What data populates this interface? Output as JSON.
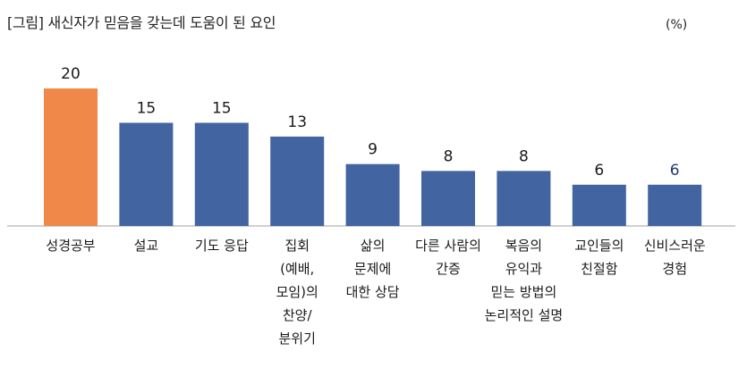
{
  "title": "[그림] 새신자가 믿음을 갖는데 도움이 된 요인",
  "unit": "(%)",
  "colors": {
    "highlight": "#F0884A",
    "bar": "#4264A0",
    "axis": "#BFBFBF",
    "label": "#1a1a1a",
    "value_default": "#1a1a1a",
    "value_last": "#1F3A6E"
  },
  "chart_data": {
    "type": "bar",
    "title": "[그림] 새신자가 믿음을 갖는데 도움이 된 요인",
    "ylabel": "(%)",
    "categories": [
      [
        "성경공부"
      ],
      [
        "설교"
      ],
      [
        "기도 응답"
      ],
      [
        "집회",
        "(예배,",
        "모임)의",
        "찬양/",
        "분위기"
      ],
      [
        "삶의",
        "문제에",
        "대한 상담"
      ],
      [
        "다른 사람의",
        "간증"
      ],
      [
        "복음의",
        "유익과",
        "믿는 방법의",
        "논리적인 설명"
      ],
      [
        "교인들의",
        "친절함"
      ],
      [
        "신비스러운",
        "경험"
      ]
    ],
    "values": [
      20,
      15,
      15,
      13,
      9,
      8,
      8,
      6,
      6
    ],
    "highlight_index": 0,
    "ylim": [
      0,
      20
    ],
    "grid": false,
    "legend": "none"
  }
}
